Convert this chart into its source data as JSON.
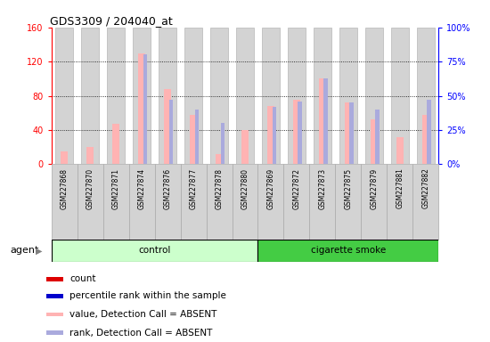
{
  "title": "GDS3309 / 204040_at",
  "samples": [
    "GSM227868",
    "GSM227870",
    "GSM227871",
    "GSM227874",
    "GSM227876",
    "GSM227877",
    "GSM227878",
    "GSM227880",
    "GSM227869",
    "GSM227872",
    "GSM227873",
    "GSM227875",
    "GSM227879",
    "GSM227881",
    "GSM227882"
  ],
  "pink_values": [
    15,
    20,
    47,
    130,
    88,
    58,
    12,
    40,
    68,
    75,
    100,
    72,
    52,
    32,
    58
  ],
  "blue_ranks": [
    0,
    0,
    0,
    80,
    47,
    40,
    30,
    0,
    42,
    46,
    63,
    45,
    40,
    0,
    47
  ],
  "ylim_left": [
    0,
    160
  ],
  "ylim_right": [
    0,
    100
  ],
  "yticks_left": [
    0,
    40,
    80,
    120,
    160
  ],
  "yticks_right": [
    0,
    25,
    50,
    75,
    100
  ],
  "ytick_labels_left": [
    "0",
    "40",
    "80",
    "120",
    "160"
  ],
  "ytick_labels_right": [
    "0%",
    "25%",
    "50%",
    "75%",
    "100%"
  ],
  "control_color_light": "#ccffcc",
  "smoke_color": "#44cc44",
  "bar_bg_color": "#d3d3d3",
  "bar_bg_edge_color": "#aaaaaa",
  "pink_color": "#ffb3b3",
  "blue_color": "#aaaadd",
  "n_control": 8,
  "n_smoke": 7,
  "legend_colors": [
    "#dd0000",
    "#0000cc",
    "#ffb3b3",
    "#aaaadd"
  ],
  "legend_labels": [
    "count",
    "percentile rank within the sample",
    "value, Detection Call = ABSENT",
    "rank, Detection Call = ABSENT"
  ]
}
